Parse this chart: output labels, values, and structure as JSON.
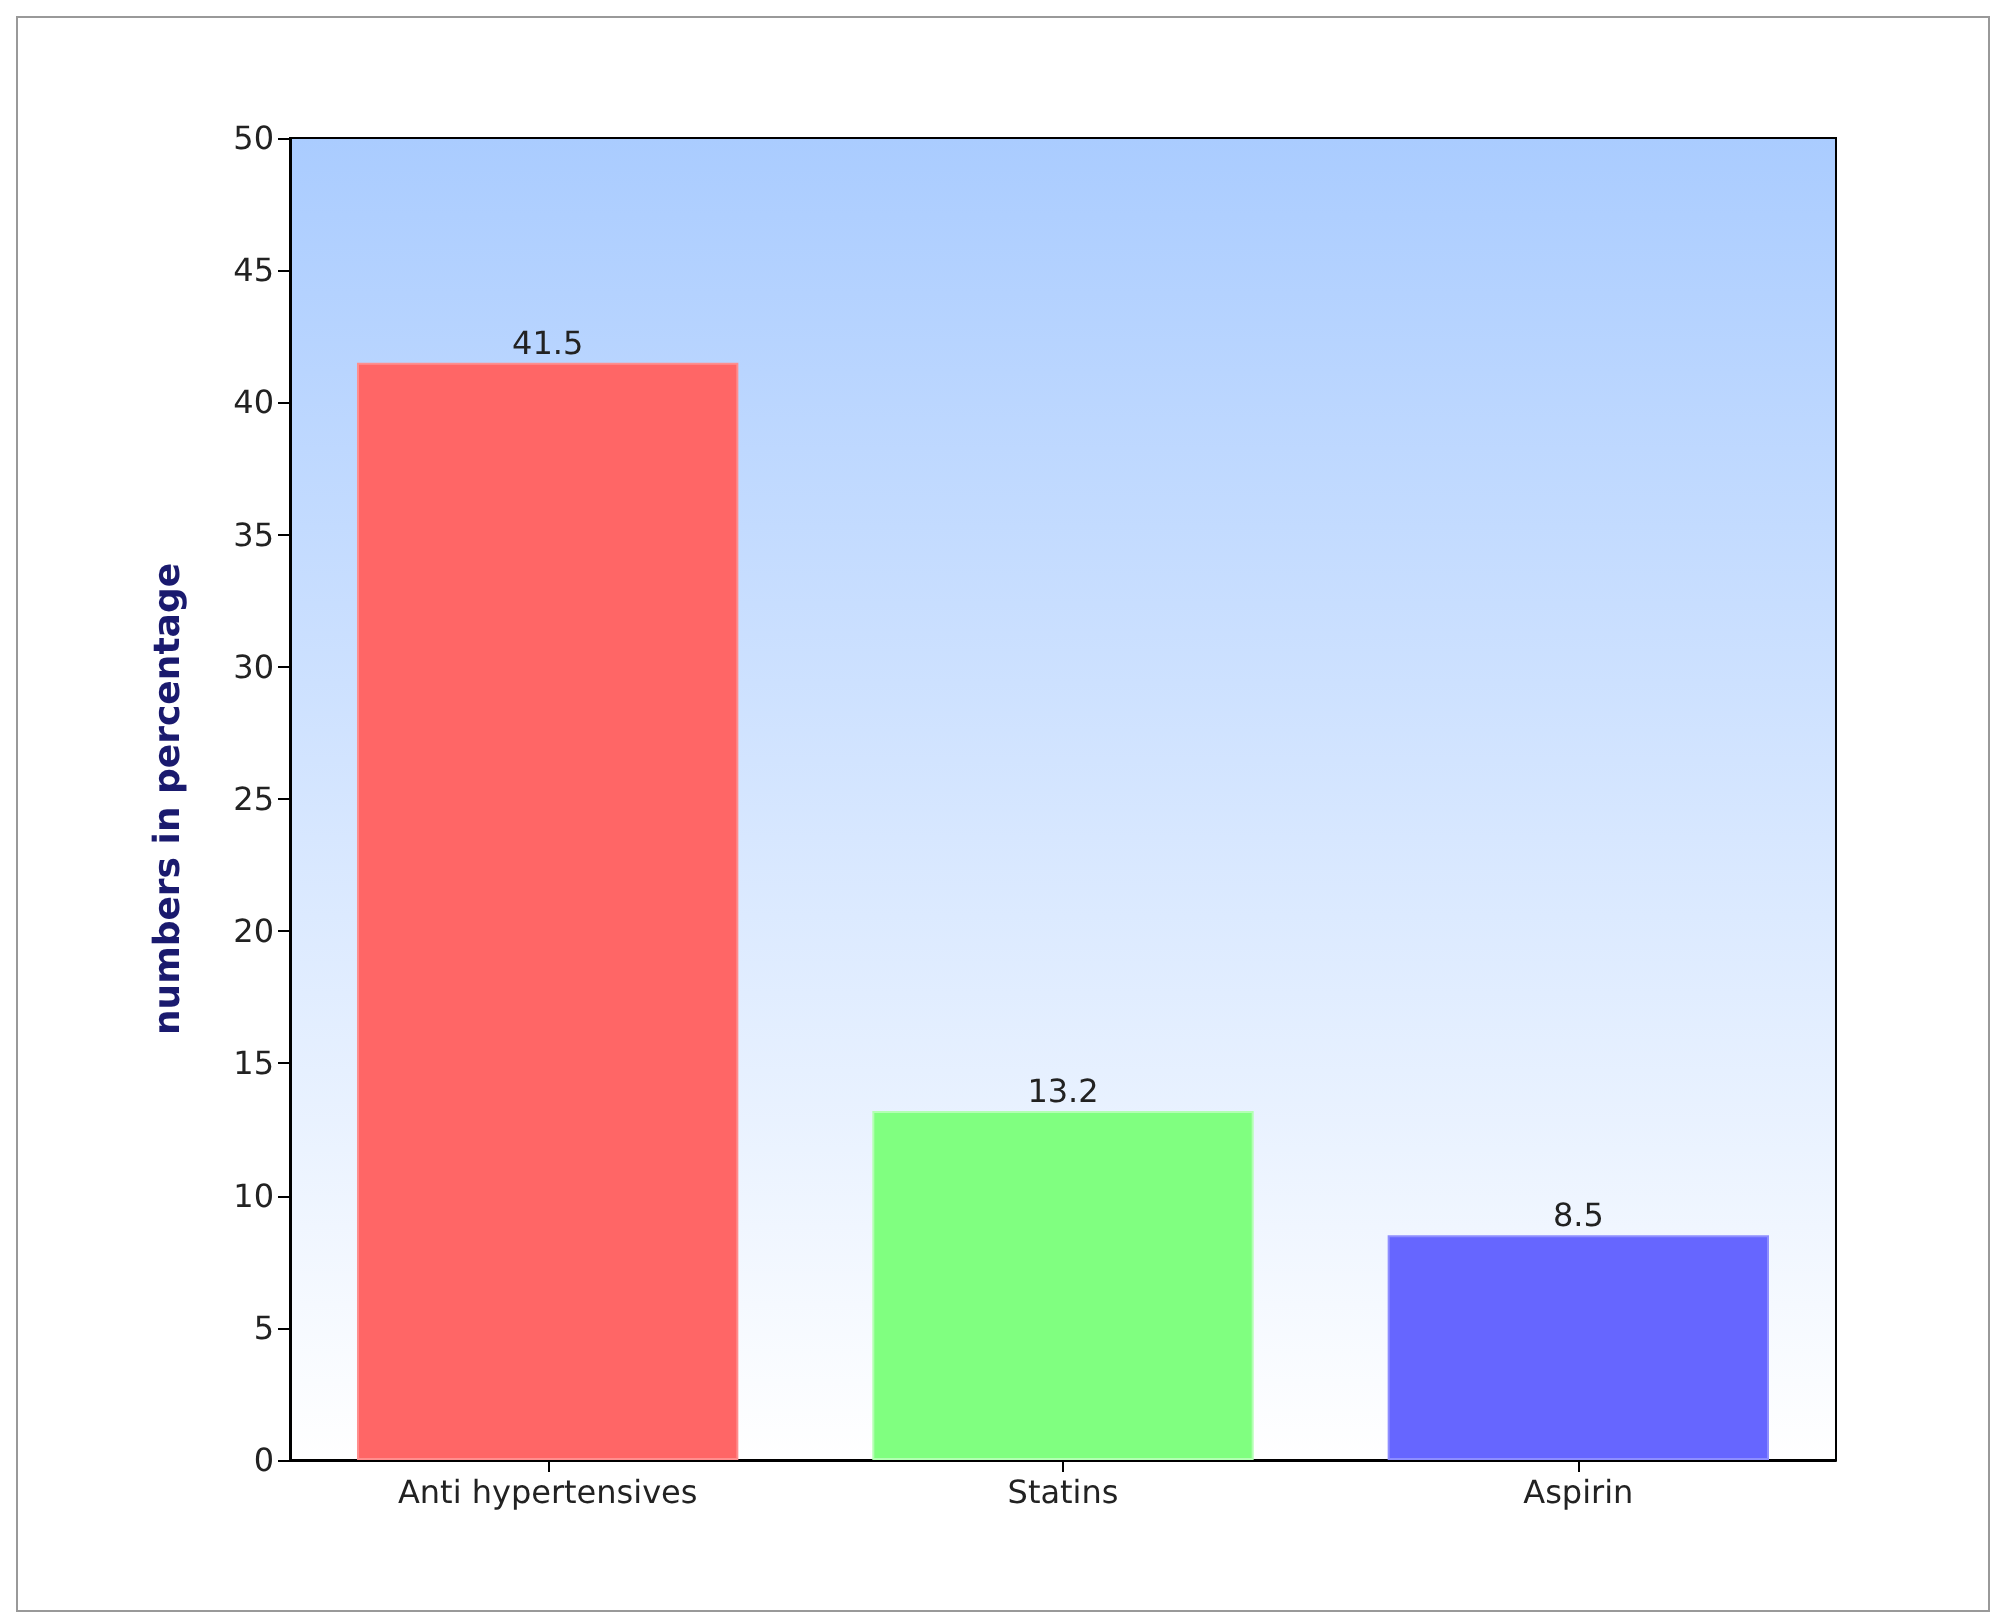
{
  "chart_data": {
    "type": "bar",
    "ylabel": "numbers in percentage",
    "categories": [
      "Anti hypertensives",
      "Statins",
      "Aspirin"
    ],
    "values": [
      41.5,
      13.2,
      8.5
    ],
    "colors": [
      "#ff6666",
      "#80ff80",
      "#6666ff"
    ],
    "ylim": [
      0,
      50
    ],
    "yticks": [
      0,
      5,
      10,
      15,
      20,
      25,
      30,
      35,
      40,
      45,
      50
    ],
    "data_labels": true
  }
}
